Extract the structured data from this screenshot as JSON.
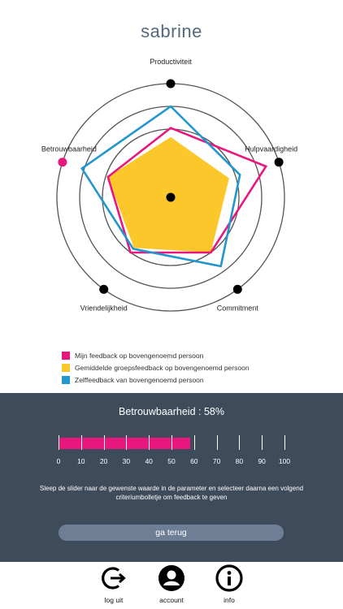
{
  "profile": {
    "name": "sabrine"
  },
  "radar": {
    "axes": [
      {
        "label": "Productiviteit"
      },
      {
        "label": "Hulpvaardigheid"
      },
      {
        "label": "Commitment"
      },
      {
        "label": "Vriendelijkheid"
      },
      {
        "label": "Betrouwbaarheid"
      }
    ],
    "selected_axis": 4,
    "series": [
      {
        "name": "Gemiddelde groepsfeedback op bovengenoemd persoon",
        "color": "#fcc72a",
        "values": [
          53,
          54,
          60,
          55,
          58
        ]
      },
      {
        "name": "Mijn feedback op bovengenoemd persoon",
        "color": "#e8177e",
        "values": [
          61,
          88,
          60,
          60,
          58
        ]
      },
      {
        "name": "Zelffeedback van bovengenoemd persoon",
        "color": "#2197ce",
        "values": [
          80,
          64,
          75,
          56,
          82
        ]
      }
    ]
  },
  "legend": [
    {
      "label": "Mijn feedback op bovengenoemd persoon",
      "color": "#e8177e"
    },
    {
      "label": "Gemiddelde groepsfeedback op bovengenoemd persoon",
      "color": "#fcc72a"
    },
    {
      "label": "Zelffeedback van bovengenoemd persoon",
      "color": "#2197ce"
    }
  ],
  "slider": {
    "parameter_label": "Betrouwbaarheid : 58%",
    "value": 58,
    "ticks": [
      "0",
      "10",
      "20",
      "30",
      "40",
      "50",
      "60",
      "70",
      "80",
      "90",
      "100"
    ],
    "fill_color": "#e8177e"
  },
  "instruction": "Sleep de slider naar de gewenste waarde in de parameter en selecteer daarna een volgend criteriumbolletje om feedback te geven",
  "back_button": "ga terug",
  "nav": [
    {
      "label": "log uit",
      "icon": "logout-icon"
    },
    {
      "label": "account",
      "icon": "account-icon"
    },
    {
      "label": "info",
      "icon": "info-icon"
    }
  ]
}
